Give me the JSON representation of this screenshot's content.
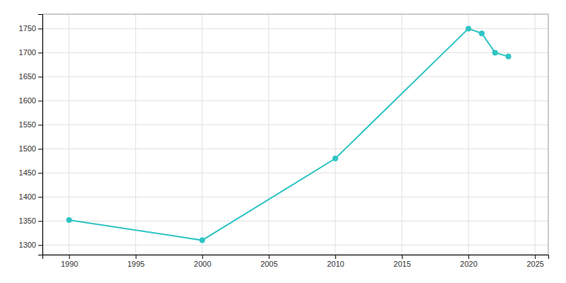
{
  "chart_data": {
    "type": "line",
    "x": [
      1990,
      2000,
      2010,
      2020,
      2021,
      2022,
      2023
    ],
    "values": [
      1352,
      1310,
      1480,
      1750,
      1740,
      1700,
      1692
    ],
    "color": "#2ec4c4",
    "marker": "circle",
    "xlim": [
      1988,
      2026
    ],
    "ylim": [
      1280,
      1780
    ],
    "xticks": [
      1990,
      1995,
      2000,
      2005,
      2010,
      2015,
      2020,
      2025
    ],
    "yticks": [
      1300,
      1350,
      1400,
      1450,
      1500,
      1550,
      1600,
      1650,
      1700,
      1750
    ],
    "grid": true
  }
}
